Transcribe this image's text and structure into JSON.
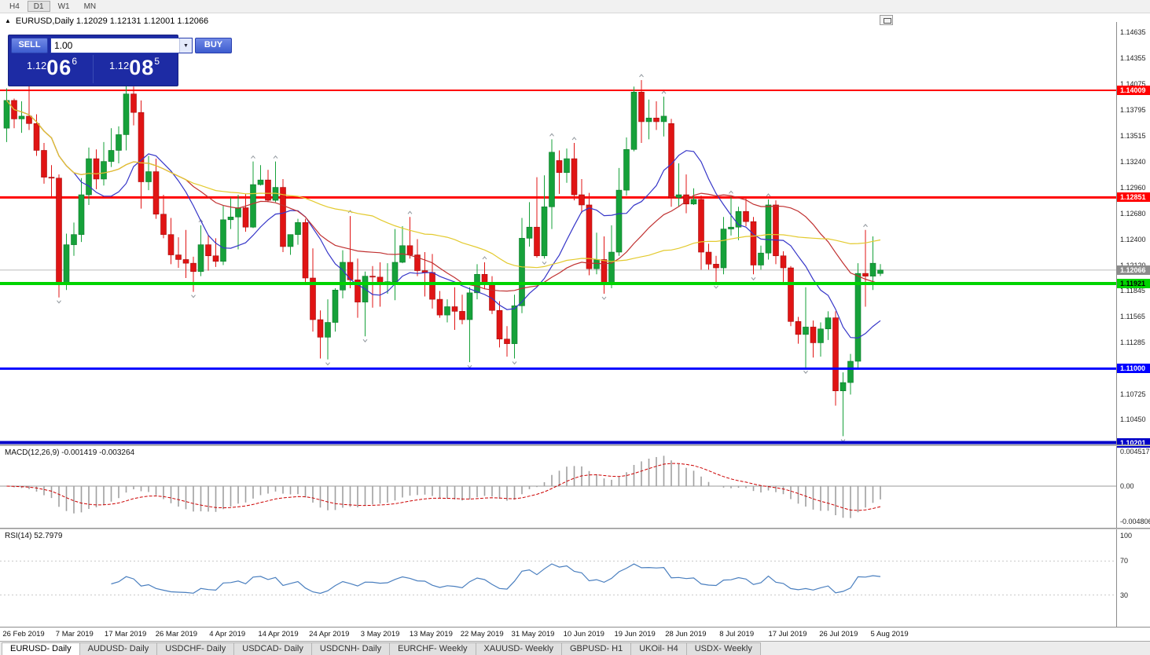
{
  "window": {
    "title": "EURUSD,Daily  1.12029 1.12131 1.12001 1.12066"
  },
  "icons": {
    "window_collapse_triangle": "▲",
    "volume_dropdown": "▼"
  },
  "toolbar": {
    "timeframes": [
      {
        "label": "H4",
        "active": false
      },
      {
        "label": "D1",
        "active": true
      },
      {
        "label": "W1",
        "active": false
      },
      {
        "label": "MN",
        "active": false
      }
    ]
  },
  "trade_panel": {
    "sell_label": "SELL",
    "buy_label": "BUY",
    "volume": "1.00",
    "sell_price": {
      "prefix": "1.12",
      "big": "06",
      "sup": "6"
    },
    "buy_price": {
      "prefix": "1.12",
      "big": "08",
      "sup": "5"
    }
  },
  "indicators": {
    "macd": {
      "label": "MACD(12,26,9) -0.001419 -0.003264",
      "fast": 12,
      "slow": 26,
      "signal": 9,
      "scale": [
        "0.004517",
        "0.00",
        "-0.004806"
      ],
      "colors": {
        "histogram": "#a0a0a0",
        "signal": "#cc0000",
        "zero": "#999999"
      }
    },
    "rsi": {
      "label": "RSI(14) 52.7979",
      "period": 14,
      "scale": [
        "100",
        "70",
        "30"
      ],
      "levels": [
        70,
        30
      ],
      "colors": {
        "line": "#4a7fbf",
        "levels": "#c8c8c8"
      }
    }
  },
  "chart_data": {
    "type": "candlestick",
    "symbol": "EURUSD",
    "timeframe": "Daily",
    "ohlc_current": {
      "open": 1.12029,
      "high": 1.12131,
      "low": 1.12001,
      "close": 1.12066
    },
    "price_axis": {
      "max": 1.1468,
      "min": 1.1018,
      "labels": [
        "1.14635",
        "1.14355",
        "1.14075",
        "1.13795",
        "1.13515",
        "1.13240",
        "1.12960",
        "1.12680",
        "1.12400",
        "1.12120",
        "1.11845",
        "1.11565",
        "1.11285",
        "1.10725",
        "1.10450"
      ]
    },
    "date_labels": [
      "26 Feb 2019",
      "7 Mar 2019",
      "17 Mar 2019",
      "26 Mar 2019",
      "4 Apr 2019",
      "14 Apr 2019",
      "24 Apr 2019",
      "3 May 2019",
      "13 May 2019",
      "22 May 2019",
      "31 May 2019",
      "10 Jun 2019",
      "19 Jun 2019",
      "28 Jun 2019",
      "8 Jul 2019",
      "17 Jul 2019",
      "26 Jul 2019",
      "5 Aug 2019"
    ],
    "hlines": [
      {
        "price": 1.14009,
        "label": "1.14009",
        "color": "#ff0000",
        "width": 2,
        "text": "#ffffff",
        "front": false
      },
      {
        "price": 1.12851,
        "label": "1.12851",
        "color": "#ff0000",
        "width": 3,
        "text": "#ffffff",
        "front": false
      },
      {
        "price": 1.11921,
        "label": "1.11921",
        "color": "#00d400",
        "width": 4,
        "text": "#000000",
        "front": true
      },
      {
        "price": 1.11,
        "label": "1.11000",
        "color": "#0000ff",
        "width": 3,
        "text": "#ffffff",
        "front": true
      },
      {
        "price": 1.10201,
        "label": "1.10201",
        "color": "#0000c8",
        "width": 4,
        "text": "#ffffff",
        "front": true
      }
    ],
    "current_price": {
      "price": 1.12066,
      "label": "1.12066",
      "line_color": "#bbbbbb",
      "label_bg": "#8c8c8c"
    },
    "candle_colors": {
      "up": "#16a13a",
      "up_border": "#0c7a2a",
      "down": "#e01414",
      "down_border": "#a50d0d",
      "fractal": "#8f969c"
    },
    "moving_averages": [
      {
        "type": "sma",
        "period": 10,
        "color": "#3535c8"
      },
      {
        "type": "sma",
        "period": 25,
        "color": "#c03030"
      },
      {
        "type": "sma",
        "period": 50,
        "color": "#e3ca2e"
      }
    ],
    "candles": [
      [
        1.136,
        1.1403,
        1.1345,
        1.139
      ],
      [
        1.139,
        1.1392,
        1.136,
        1.137
      ],
      [
        1.137,
        1.1389,
        1.1355,
        1.1373
      ],
      [
        1.1373,
        1.1409,
        1.1358,
        1.1365
      ],
      [
        1.1365,
        1.1375,
        1.133,
        1.1336
      ],
      [
        1.1336,
        1.1344,
        1.13,
        1.1307
      ],
      [
        1.1307,
        1.132,
        1.1285,
        1.1306
      ],
      [
        1.1306,
        1.131,
        1.1177,
        1.1193
      ],
      [
        1.1193,
        1.1246,
        1.1185,
        1.1234
      ],
      [
        1.1234,
        1.1258,
        1.1222,
        1.1245
      ],
      [
        1.1245,
        1.1306,
        1.1237,
        1.1288
      ],
      [
        1.1288,
        1.1339,
        1.1277,
        1.1327
      ],
      [
        1.1327,
        1.1337,
        1.1294,
        1.1305
      ],
      [
        1.1305,
        1.1345,
        1.1298,
        1.1324
      ],
      [
        1.1324,
        1.136,
        1.1318,
        1.1336
      ],
      [
        1.1336,
        1.1362,
        1.1322,
        1.1353
      ],
      [
        1.1353,
        1.1409,
        1.1336,
        1.1397
      ],
      [
        1.1397,
        1.1405,
        1.1363,
        1.1377
      ],
      [
        1.1377,
        1.139,
        1.1273,
        1.1302
      ],
      [
        1.1302,
        1.133,
        1.1293,
        1.1313
      ],
      [
        1.1313,
        1.1327,
        1.1262,
        1.1267
      ],
      [
        1.1267,
        1.1288,
        1.1241,
        1.1245
      ],
      [
        1.1245,
        1.1263,
        1.1213,
        1.1223
      ],
      [
        1.1223,
        1.1242,
        1.1209,
        1.1218
      ],
      [
        1.1218,
        1.125,
        1.1198,
        1.1214
      ],
      [
        1.1214,
        1.1221,
        1.1183,
        1.1205
      ],
      [
        1.1205,
        1.1255,
        1.12,
        1.1234
      ],
      [
        1.1234,
        1.1244,
        1.1206,
        1.1222
      ],
      [
        1.1222,
        1.1241,
        1.121,
        1.1216
      ],
      [
        1.1216,
        1.1276,
        1.1212,
        1.1261
      ],
      [
        1.1261,
        1.1285,
        1.1251,
        1.1264
      ],
      [
        1.1264,
        1.1288,
        1.1229,
        1.1274
      ],
      [
        1.1274,
        1.1289,
        1.1248,
        1.1253
      ],
      [
        1.1253,
        1.1324,
        1.1252,
        1.1299
      ],
      [
        1.1299,
        1.132,
        1.1298,
        1.1304
      ],
      [
        1.1304,
        1.1315,
        1.128,
        1.1282
      ],
      [
        1.1282,
        1.1324,
        1.128,
        1.1296
      ],
      [
        1.1296,
        1.1305,
        1.1226,
        1.1232
      ],
      [
        1.1232,
        1.1245,
        1.1223,
        1.1245
      ],
      [
        1.1245,
        1.1262,
        1.1234,
        1.1258
      ],
      [
        1.1258,
        1.1262,
        1.1192,
        1.1198
      ],
      [
        1.1198,
        1.123,
        1.114,
        1.1153
      ],
      [
        1.1153,
        1.1163,
        1.1111,
        1.1134
      ],
      [
        1.1134,
        1.1175,
        1.111,
        1.115
      ],
      [
        1.115,
        1.1187,
        1.114,
        1.1185
      ],
      [
        1.1185,
        1.1228,
        1.1176,
        1.1215
      ],
      [
        1.1215,
        1.1265,
        1.1187,
        1.1196
      ],
      [
        1.1196,
        1.1219,
        1.1155,
        1.1172
      ],
      [
        1.1172,
        1.1205,
        1.1135,
        1.12
      ],
      [
        1.12,
        1.1211,
        1.1166,
        1.1199
      ],
      [
        1.1199,
        1.1215,
        1.1167,
        1.1191
      ],
      [
        1.1191,
        1.1214,
        1.1181,
        1.1194
      ],
      [
        1.1194,
        1.1251,
        1.1174,
        1.1215
      ],
      [
        1.1215,
        1.1254,
        1.1214,
        1.1233
      ],
      [
        1.1233,
        1.1264,
        1.1219,
        1.1223
      ],
      [
        1.1223,
        1.124,
        1.12,
        1.1206
      ],
      [
        1.1206,
        1.1226,
        1.1178,
        1.1204
      ],
      [
        1.1204,
        1.1224,
        1.1165,
        1.1175
      ],
      [
        1.1175,
        1.1184,
        1.1155,
        1.1158
      ],
      [
        1.1158,
        1.1175,
        1.115,
        1.1167
      ],
      [
        1.1167,
        1.1188,
        1.1142,
        1.1162
      ],
      [
        1.1162,
        1.118,
        1.1148,
        1.1153
      ],
      [
        1.1153,
        1.1188,
        1.1107,
        1.1182
      ],
      [
        1.1182,
        1.1213,
        1.1175,
        1.1202
      ],
      [
        1.1202,
        1.1215,
        1.1186,
        1.1193
      ],
      [
        1.1193,
        1.12,
        1.1159,
        1.1163
      ],
      [
        1.1163,
        1.1173,
        1.1123,
        1.1132
      ],
      [
        1.1132,
        1.1146,
        1.1113,
        1.1127
      ],
      [
        1.1127,
        1.118,
        1.1111,
        1.1168
      ],
      [
        1.1168,
        1.1263,
        1.116,
        1.1241
      ],
      [
        1.1241,
        1.128,
        1.1232,
        1.1253
      ],
      [
        1.1253,
        1.1307,
        1.122,
        1.1222
      ],
      [
        1.1222,
        1.1309,
        1.1219,
        1.1275
      ],
      [
        1.1275,
        1.1348,
        1.1251,
        1.1334
      ],
      [
        1.1325,
        1.1336,
        1.1289,
        1.1312
      ],
      [
        1.1312,
        1.1338,
        1.1301,
        1.1327
      ],
      [
        1.1327,
        1.1344,
        1.1282,
        1.1288
      ],
      [
        1.1288,
        1.1305,
        1.1268,
        1.1277
      ],
      [
        1.1277,
        1.129,
        1.1201,
        1.1208
      ],
      [
        1.1208,
        1.1247,
        1.1202,
        1.1218
      ],
      [
        1.1218,
        1.1243,
        1.1181,
        1.1193
      ],
      [
        1.1193,
        1.1255,
        1.1187,
        1.1226
      ],
      [
        1.1226,
        1.1317,
        1.1222,
        1.1293
      ],
      [
        1.1293,
        1.135,
        1.1287,
        1.1337
      ],
      [
        1.1337,
        1.1405,
        1.1335,
        1.1399
      ],
      [
        1.1399,
        1.1412,
        1.1344,
        1.1367
      ],
      [
        1.1367,
        1.1391,
        1.1348,
        1.1371
      ],
      [
        1.1371,
        1.1389,
        1.1358,
        1.1367
      ],
      [
        1.1367,
        1.1394,
        1.1351,
        1.1373
      ],
      [
        1.1365,
        1.137,
        1.1275,
        1.1285
      ],
      [
        1.1285,
        1.1322,
        1.1275,
        1.1288
      ],
      [
        1.1288,
        1.131,
        1.1268,
        1.1278
      ],
      [
        1.1278,
        1.1295,
        1.1277,
        1.1283
      ],
      [
        1.1283,
        1.1287,
        1.1207,
        1.1226
      ],
      [
        1.1226,
        1.1235,
        1.1207,
        1.1213
      ],
      [
        1.1213,
        1.1222,
        1.1193,
        1.1209
      ],
      [
        1.1209,
        1.1264,
        1.1202,
        1.1251
      ],
      [
        1.1251,
        1.1286,
        1.1244,
        1.1253
      ],
      [
        1.1253,
        1.1275,
        1.1239,
        1.127
      ],
      [
        1.127,
        1.1284,
        1.1254,
        1.1259
      ],
      [
        1.1259,
        1.1264,
        1.1202,
        1.1212
      ],
      [
        1.1212,
        1.1233,
        1.1207,
        1.1225
      ],
      [
        1.1225,
        1.1283,
        1.1218,
        1.1277
      ],
      [
        1.1277,
        1.1282,
        1.1213,
        1.1222
      ],
      [
        1.1222,
        1.1227,
        1.1192,
        1.1209
      ],
      [
        1.1209,
        1.1211,
        1.1146,
        1.1151
      ],
      [
        1.1151,
        1.1156,
        1.1127,
        1.1137
      ],
      [
        1.1137,
        1.1188,
        1.1101,
        1.1145
      ],
      [
        1.1145,
        1.1152,
        1.1112,
        1.1128
      ],
      [
        1.1128,
        1.115,
        1.1113,
        1.1143
      ],
      [
        1.1143,
        1.1162,
        1.1131,
        1.1155
      ],
      [
        1.1155,
        1.1162,
        1.106,
        1.1076
      ],
      [
        1.1076,
        1.1096,
        1.1027,
        1.1085
      ],
      [
        1.1085,
        1.1116,
        1.1072,
        1.1108
      ],
      [
        1.1108,
        1.1214,
        1.1101,
        1.1203
      ],
      [
        1.1203,
        1.125,
        1.1167,
        1.12
      ],
      [
        1.12,
        1.1243,
        1.1185,
        1.1214
      ],
      [
        1.12029,
        1.12131,
        1.12001,
        1.12066
      ]
    ]
  },
  "bottom_tabs": [
    {
      "label": "EURUSD- Daily",
      "active": true
    },
    {
      "label": "AUDUSD- Daily",
      "active": false
    },
    {
      "label": "USDCHF- Daily",
      "active": false
    },
    {
      "label": "USDCAD- Daily",
      "active": false
    },
    {
      "label": "USDCNH- Daily",
      "active": false
    },
    {
      "label": "EURCHF- Weekly",
      "active": false
    },
    {
      "label": "XAUUSD- Weekly",
      "active": false
    },
    {
      "label": "GBPUSD- H1",
      "active": false
    },
    {
      "label": "UKOil- H4",
      "active": false
    },
    {
      "label": "USDX- Weekly",
      "active": false
    }
  ]
}
